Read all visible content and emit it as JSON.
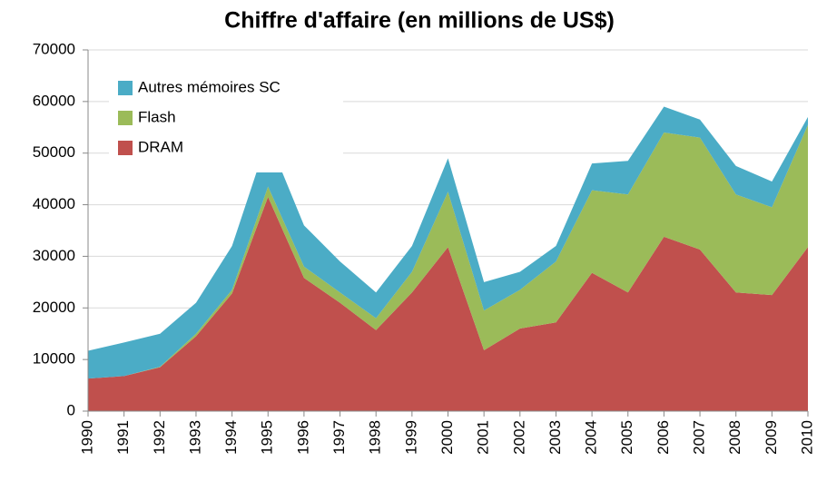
{
  "chart_data": {
    "type": "stacked_area",
    "title": "Chiffre d'affaire (en millions de US$)",
    "categories": [
      "1990",
      "1991",
      "1992",
      "1993",
      "1994",
      "1995",
      "1996",
      "1997",
      "1998",
      "1999",
      "2000",
      "2001",
      "2002",
      "2003",
      "2004",
      "2005",
      "2006",
      "2007",
      "2008",
      "2009",
      "2010"
    ],
    "series": [
      {
        "name": "DRAM",
        "color": "#c0504d",
        "values": [
          6300,
          6800,
          8500,
          14500,
          22800,
          41500,
          25800,
          21000,
          15700,
          23000,
          31800,
          11800,
          16000,
          17200,
          26800,
          23000,
          33800,
          31300,
          23000,
          22500,
          31800
        ]
      },
      {
        "name": "Flash",
        "color": "#9bbb59",
        "values": [
          0,
          0,
          100,
          500,
          700,
          2000,
          2200,
          2000,
          2300,
          4000,
          10700,
          7700,
          7500,
          11800,
          16000,
          19000,
          20200,
          21700,
          19000,
          17000,
          23700
        ]
      },
      {
        "name": "Autres mémoires SC",
        "color": "#4bacc6",
        "values": [
          5400,
          6500,
          6400,
          6000,
          8500,
          9500,
          8000,
          6000,
          5000,
          5000,
          6500,
          5500,
          3500,
          3000,
          5200,
          6500,
          5000,
          3500,
          5500,
          5000,
          1500
        ]
      }
    ],
    "ylim": [
      0,
      70000
    ],
    "yticks": [
      0,
      10000,
      20000,
      30000,
      40000,
      50000,
      60000,
      70000
    ],
    "grid": true,
    "legend": "upper left"
  }
}
